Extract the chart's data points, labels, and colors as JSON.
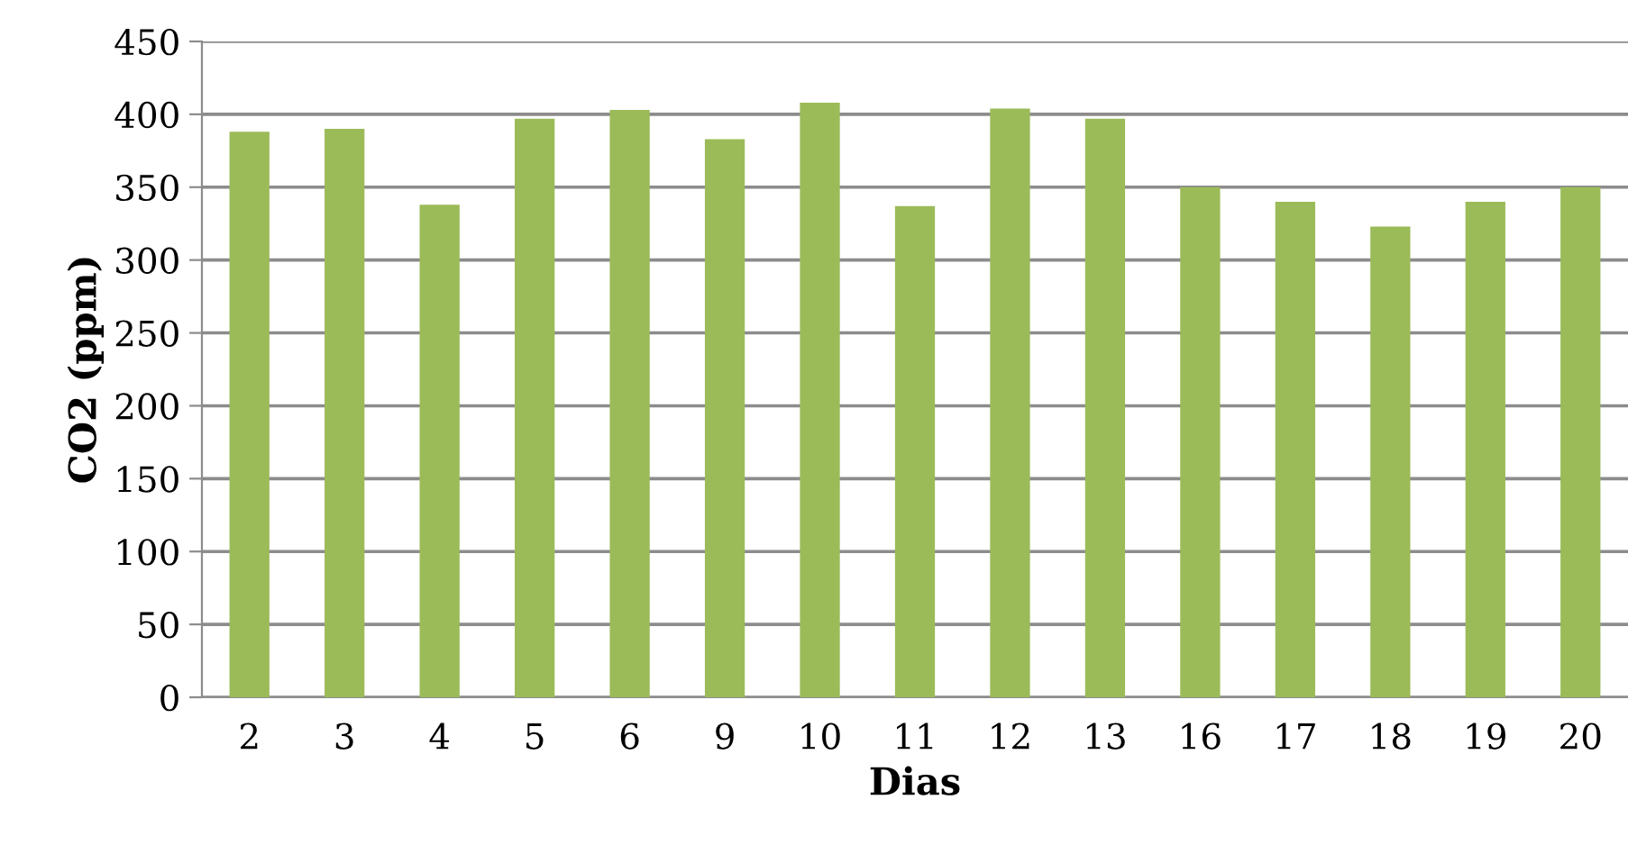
{
  "chart_data": {
    "type": "bar",
    "xlabel": "Dias",
    "ylabel": "CO2 (ppm)",
    "categories": [
      "2",
      "3",
      "4",
      "5",
      "6",
      "9",
      "10",
      "11",
      "12",
      "13",
      "16",
      "17",
      "18",
      "19",
      "20"
    ],
    "values": [
      388,
      390,
      338,
      397,
      403,
      383,
      408,
      337,
      404,
      397,
      350,
      340,
      323,
      340,
      350
    ],
    "color": "#9bbb59",
    "ylim": [
      0,
      450
    ],
    "yticks": [
      0,
      50,
      100,
      150,
      200,
      250,
      300,
      350,
      400,
      450
    ],
    "grid": "y",
    "legend": false
  }
}
